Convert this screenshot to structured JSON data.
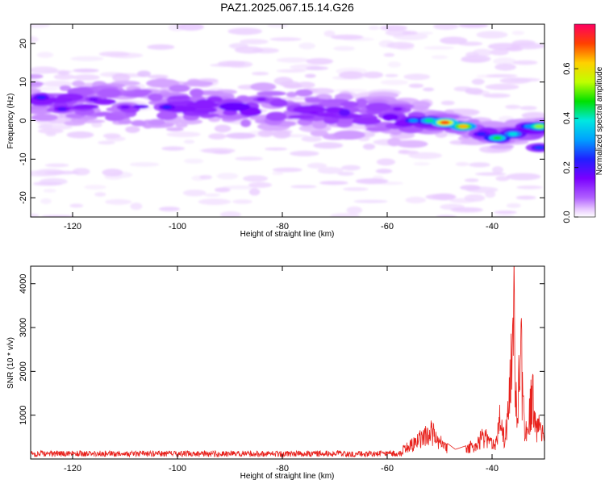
{
  "title": "PAZ1.2025.067.15.14.G26",
  "chart_data": [
    {
      "type": "heatmap",
      "xlabel": "Height of straight line (km)",
      "ylabel": "Frequency (Hz)",
      "xlim": [
        -128,
        -30
      ],
      "ylim": [
        -25,
        25
      ],
      "xticks": [
        -120,
        -100,
        -80,
        -60,
        -40
      ],
      "yticks": [
        -20,
        -10,
        0,
        10,
        20
      ],
      "grid": false,
      "colorbar": {
        "label": "Normalized spectral amplitude",
        "range": [
          0.0,
          0.78
        ],
        "ticks": [
          0.0,
          0.2,
          0.4,
          0.6
        ],
        "colormap": [
          "#ffffff",
          "#e8c8ff",
          "#b060ff",
          "#7a00ff",
          "#2020ff",
          "#00a0ff",
          "#00e8e0",
          "#00e000",
          "#c0ff00",
          "#ffd000",
          "#ff4000",
          "#ff0060"
        ]
      },
      "ridge": {
        "x": [
          -127,
          -120,
          -110,
          -100,
          -90,
          -80,
          -70,
          -60,
          -55,
          -50,
          -46,
          -42,
          -38,
          -34,
          -30
        ],
        "frequency": [
          5,
          5,
          4,
          4,
          3.5,
          3,
          2,
          1,
          0,
          -0.5,
          -1.5,
          -3,
          -4,
          -3,
          -2
        ]
      },
      "hotspots": [
        {
          "x": -126,
          "freq": 6,
          "value": 0.28
        },
        {
          "x": -122,
          "freq": 3,
          "value": 0.25
        },
        {
          "x": -116,
          "freq": 5.5,
          "value": 0.22
        },
        {
          "x": -110,
          "freq": 3.5,
          "value": 0.22
        },
        {
          "x": -102,
          "freq": 3.5,
          "value": 0.28
        },
        {
          "x": -90,
          "freq": 4,
          "value": 0.22
        },
        {
          "x": -84,
          "freq": 5.5,
          "value": 0.2
        },
        {
          "x": -74,
          "freq": 2,
          "value": 0.2
        },
        {
          "x": -58,
          "freq": 3,
          "value": 0.2
        },
        {
          "x": -55,
          "freq": 0,
          "value": 0.35
        },
        {
          "x": -52,
          "freq": 0,
          "value": 0.45
        },
        {
          "x": -49,
          "freq": -0.5,
          "value": 0.72
        },
        {
          "x": -45.5,
          "freq": -1.5,
          "value": 0.65
        },
        {
          "x": -42,
          "freq": -3.5,
          "value": 0.28
        },
        {
          "x": -39,
          "freq": -4.5,
          "value": 0.5
        },
        {
          "x": -36,
          "freq": -3.5,
          "value": 0.42
        },
        {
          "x": -33,
          "freq": -1.5,
          "value": 0.35
        },
        {
          "x": -31,
          "freq": -1.5,
          "value": 0.55
        },
        {
          "x": -31,
          "freq": -7,
          "value": 0.3
        }
      ]
    },
    {
      "type": "line",
      "xlabel": "Height of straight line (km)",
      "ylabel": "SNR (10 * v/v)",
      "xlim": [
        -128,
        -30
      ],
      "ylim": [
        0,
        4400
      ],
      "xticks": [
        -120,
        -100,
        -80,
        -60,
        -40
      ],
      "yticks": [
        1000,
        2000,
        3000,
        4000
      ],
      "grid": false,
      "color": "#e8211c",
      "series": [
        {
          "x": [
            -128,
            -120,
            -110,
            -100,
            -90,
            -80,
            -70,
            -60,
            -57,
            -55,
            -53,
            -51.5,
            -50.5,
            -49,
            -47,
            -45,
            -43,
            -41.5,
            -40.5,
            -39.5,
            -38.5,
            -37.5,
            -36.5,
            -35.8,
            -35.5,
            -35,
            -34.5,
            -33.8,
            -33,
            -32.2,
            -31.5,
            -30.5,
            -30
          ],
          "y": [
            120,
            120,
            110,
            110,
            110,
            110,
            110,
            150,
            300,
            450,
            700,
            850,
            600,
            400,
            220,
            300,
            450,
            700,
            500,
            400,
            1200,
            600,
            2300,
            4400,
            1800,
            2000,
            3300,
            800,
            1500,
            1800,
            800,
            1100,
            700
          ]
        }
      ]
    }
  ]
}
